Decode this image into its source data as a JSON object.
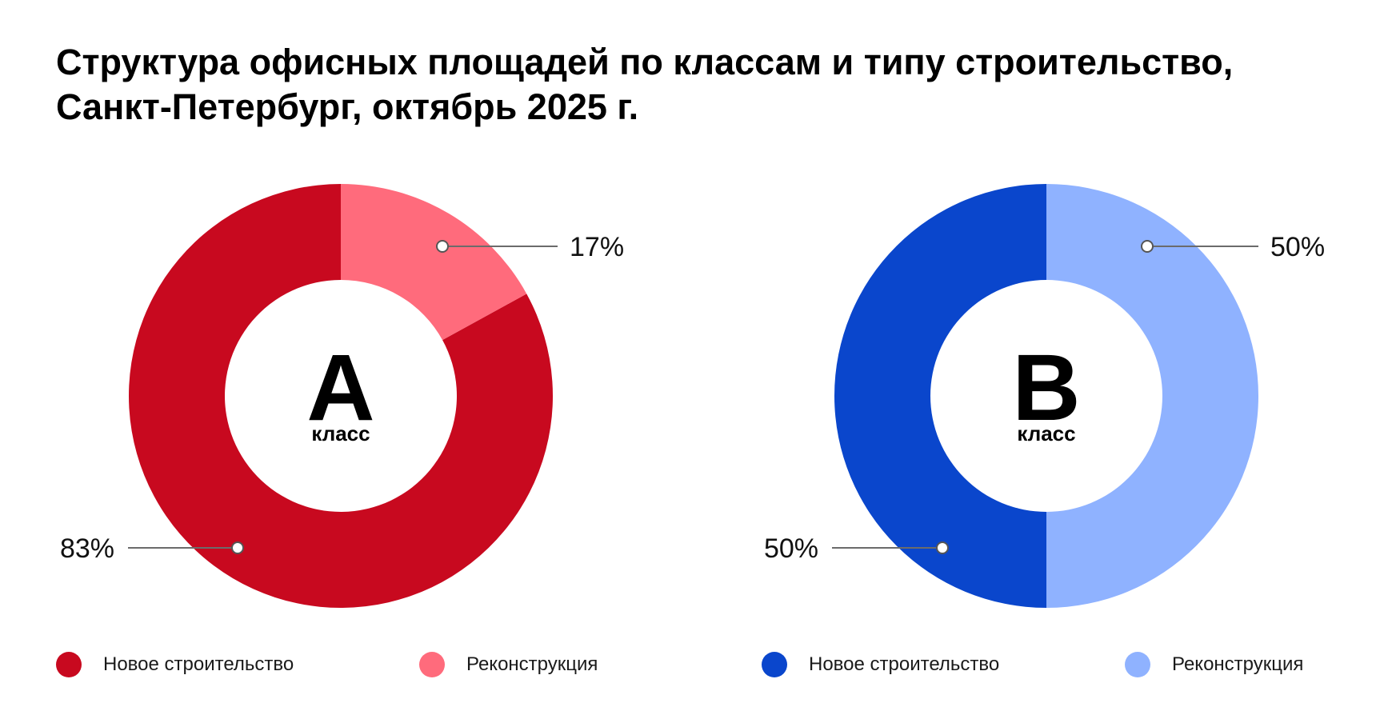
{
  "title": {
    "line1": "Структура офисных площадей по классам и типу строительство,",
    "line2": "Санкт-Петербург, октябрь 2025 г."
  },
  "colors": {
    "a_new": "#C8091F",
    "a_recon": "#FF6B7C",
    "b_new": "#0A46CC",
    "b_recon": "#8FB2FF",
    "leader": "#6b6b6b"
  },
  "chart_data": [
    {
      "type": "pie",
      "variant": "donut",
      "center_letter": "A",
      "center_label": "класс",
      "categories": [
        "Новое строительство",
        "Реконструкция"
      ],
      "values": [
        83,
        17
      ],
      "value_labels": [
        "83%",
        "17%"
      ],
      "legend_position": "bottom"
    },
    {
      "type": "pie",
      "variant": "donut",
      "center_letter": "B",
      "center_label": "класс",
      "categories": [
        "Новое строительство",
        "Реконструкция"
      ],
      "values": [
        50,
        50
      ],
      "value_labels": [
        "50%",
        "50%"
      ],
      "legend_position": "bottom"
    }
  ]
}
